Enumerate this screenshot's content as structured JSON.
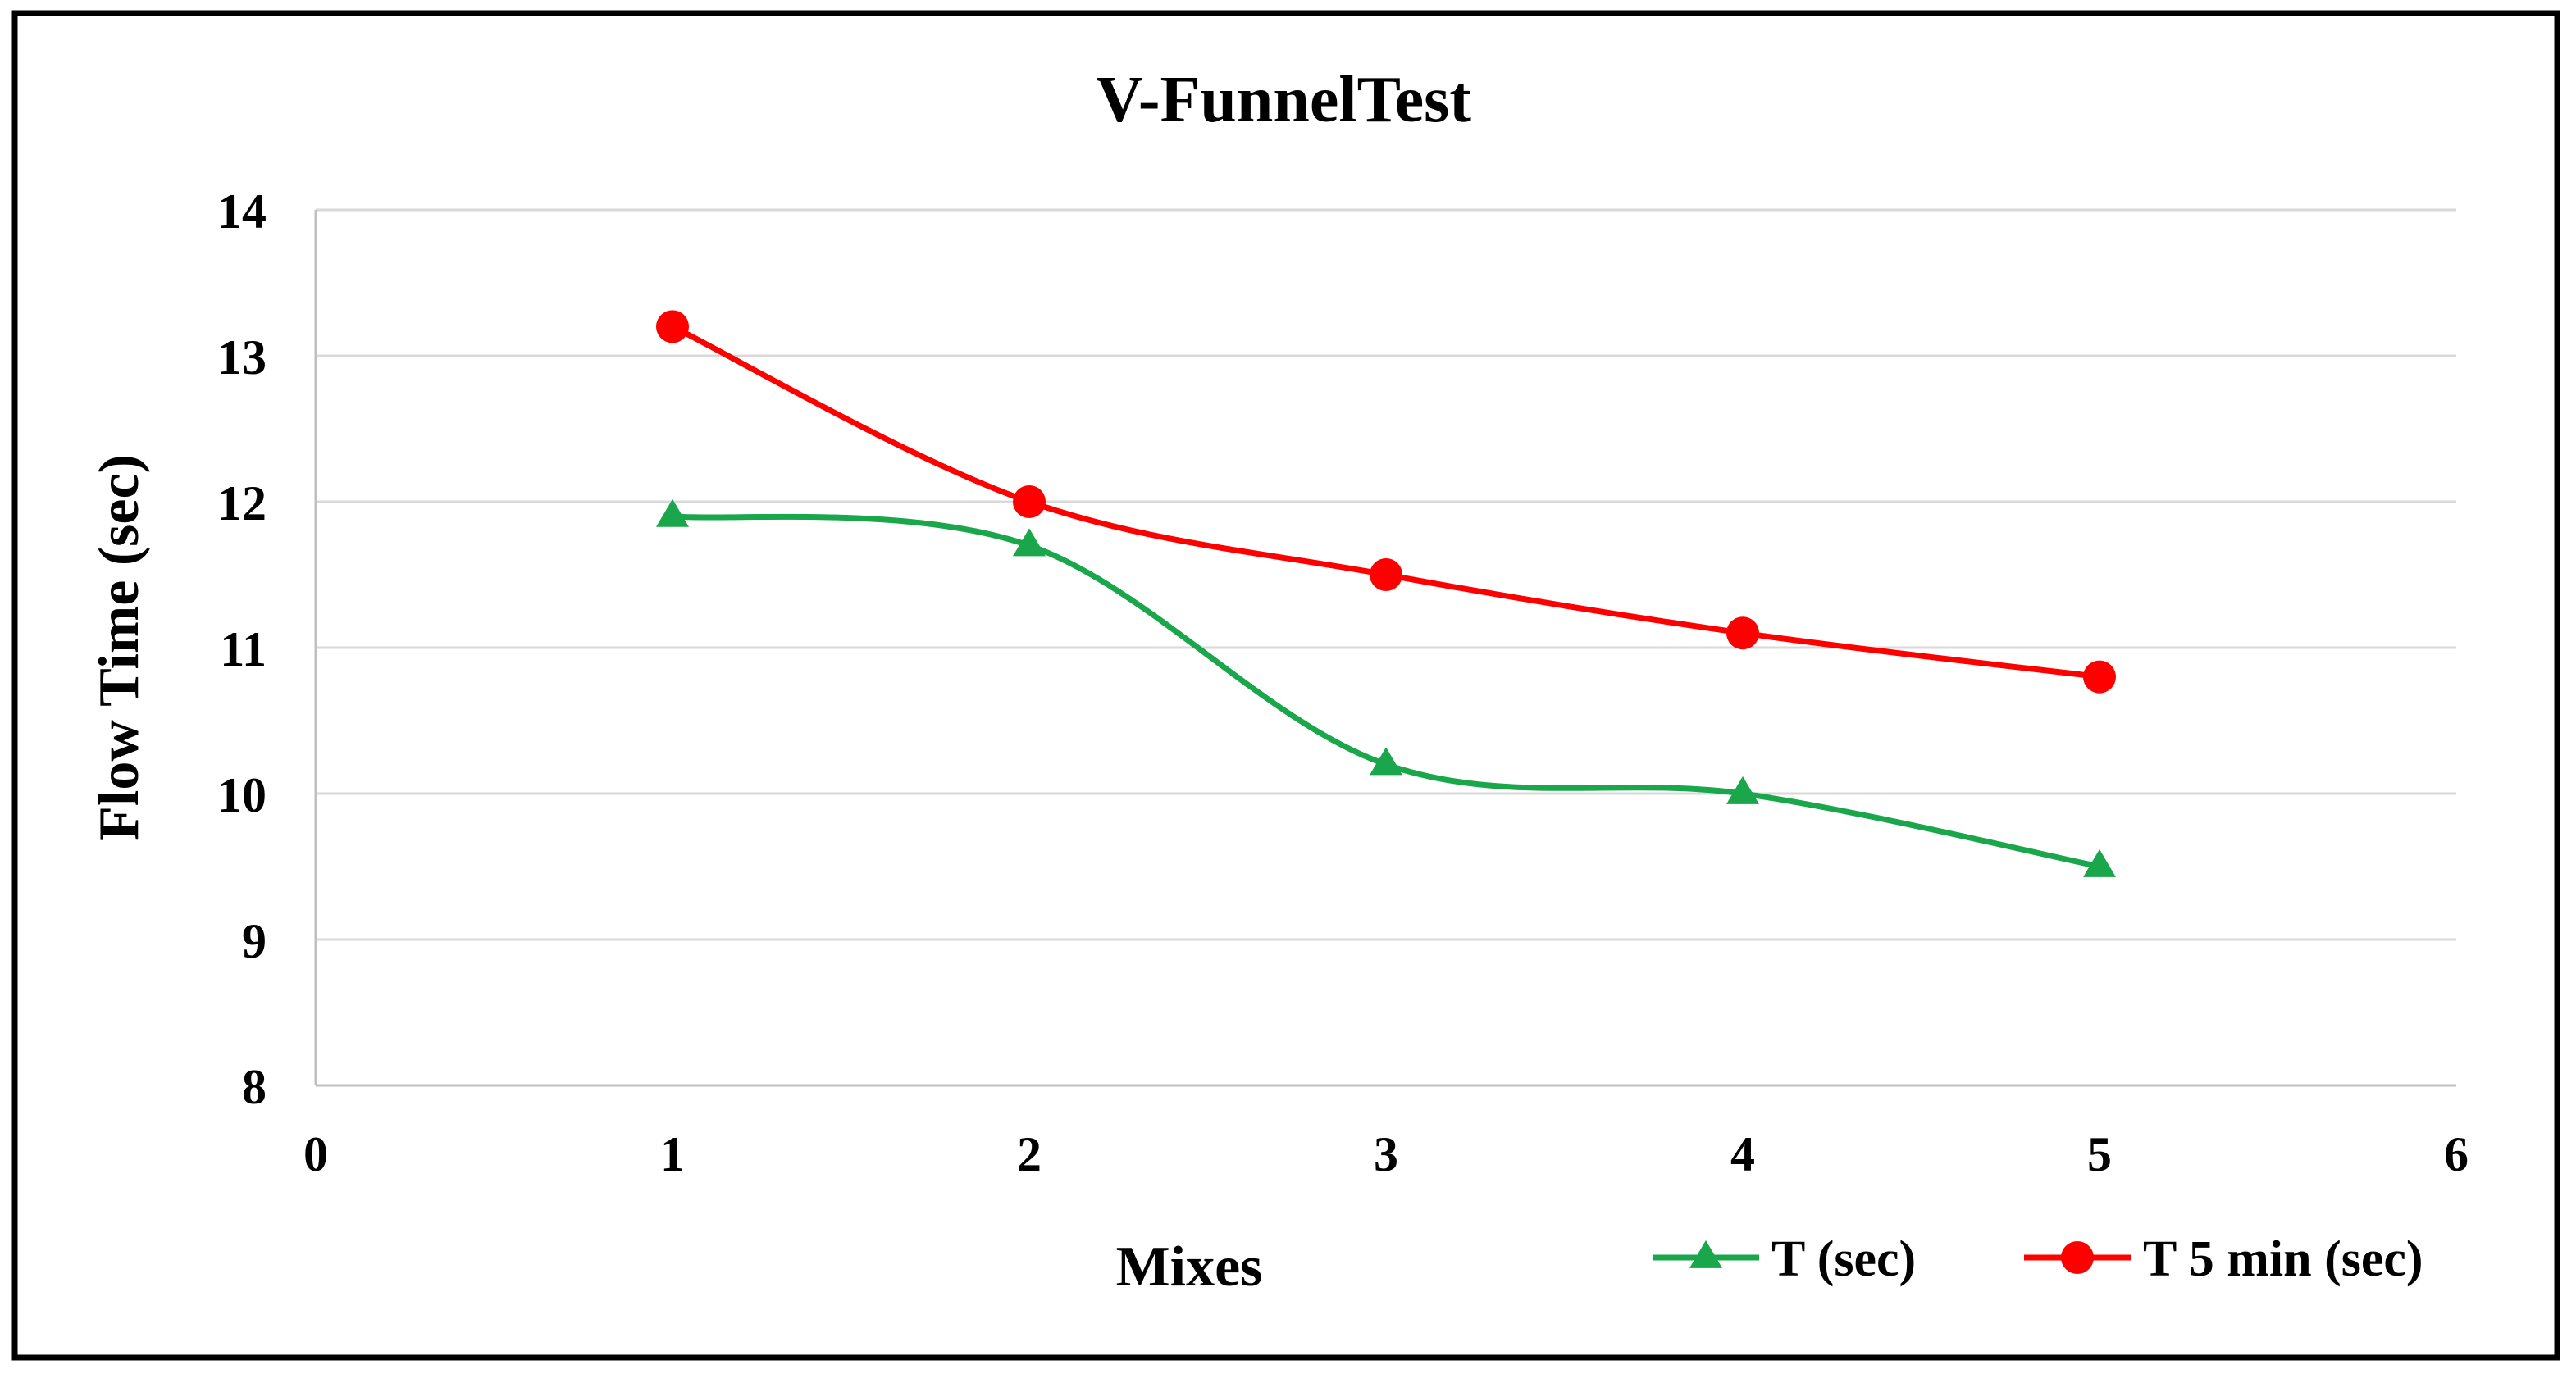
{
  "chart_data": {
    "type": "line",
    "title": "V-FunnelTest",
    "xlabel": "Mixes",
    "ylabel": "Flow Time (sec)",
    "xlim": [
      0,
      6
    ],
    "ylim": [
      8,
      14
    ],
    "xticks": [
      0,
      1,
      2,
      3,
      4,
      5,
      6
    ],
    "yticks": [
      8,
      9,
      10,
      11,
      12,
      13,
      14
    ],
    "grid": true,
    "legend_position": "bottom-right",
    "series": [
      {
        "name": "T (sec)",
        "marker": "triangle",
        "color": "#1aa64a",
        "x": [
          1,
          2,
          3,
          4,
          5
        ],
        "values": [
          11.9,
          11.7,
          10.2,
          10.0,
          9.5
        ]
      },
      {
        "name": "T 5 min (sec)",
        "marker": "circle",
        "color": "#ff0000",
        "x": [
          1,
          2,
          3,
          4,
          5
        ],
        "values": [
          13.2,
          12.0,
          11.5,
          11.1,
          10.8
        ]
      }
    ]
  }
}
